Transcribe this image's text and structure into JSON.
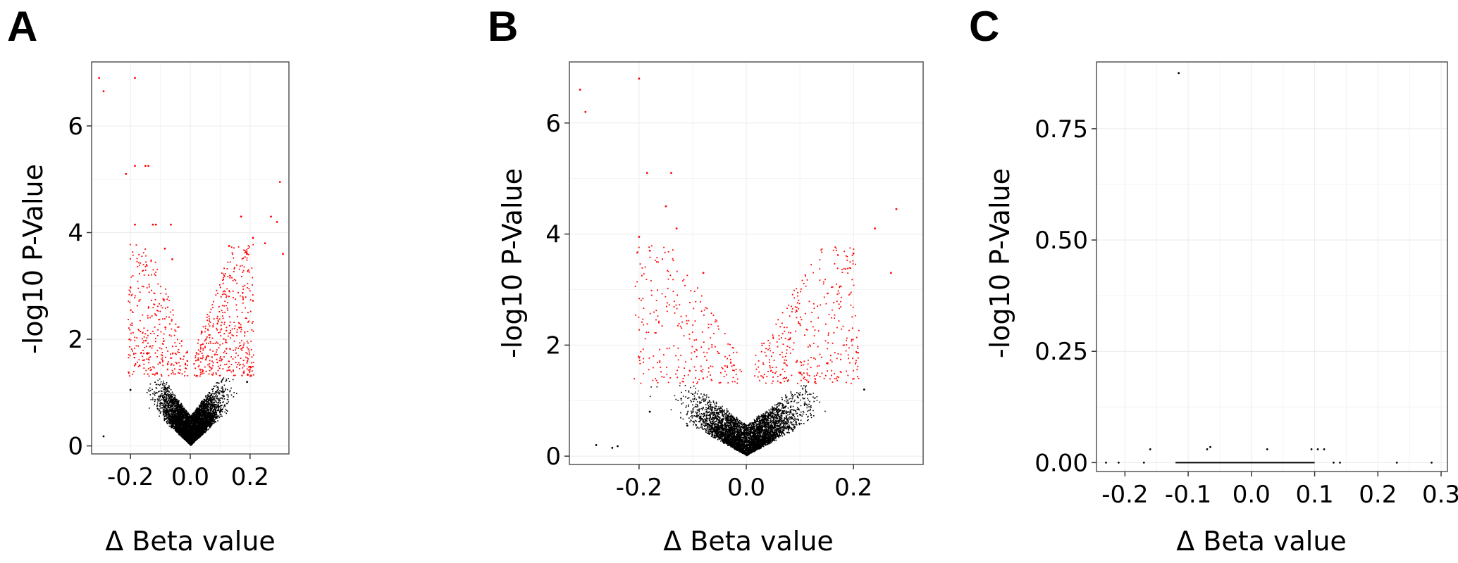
{
  "colors": {
    "significant": "#ff0000",
    "non_significant": "#000000",
    "grid": "#ebebeb",
    "frame": "#555555"
  },
  "chart_data": [
    {
      "type": "scatter",
      "panel_label": "A",
      "xlabel": "Δ Beta value",
      "ylabel": "-log10 P-Value",
      "xlim": [
        -0.33,
        0.33
      ],
      "ylim": [
        -0.15,
        7.2
      ],
      "xticks": [
        -0.2,
        0.0,
        0.2
      ],
      "xtick_labels": [
        "-0.2",
        "0.0",
        "0.2"
      ],
      "yticks": [
        0,
        2,
        4,
        6
      ],
      "ytick_labels": [
        "0",
        "2",
        "4",
        "6"
      ],
      "grid": true,
      "significance_threshold": 1.3,
      "series": [
        {
          "points": [
            [
              -0.305,
              6.9
            ],
            [
              -0.29,
              6.65
            ],
            [
              -0.185,
              6.9
            ],
            [
              -0.215,
              5.1
            ],
            [
              -0.185,
              5.25
            ],
            [
              -0.15,
              5.25
            ],
            [
              -0.14,
              5.25
            ],
            [
              -0.185,
              4.15
            ],
            [
              -0.125,
              4.15
            ],
            [
              -0.115,
              4.15
            ],
            [
              -0.065,
              4.15
            ],
            [
              0.17,
              4.3
            ],
            [
              0.27,
              4.3
            ],
            [
              0.29,
              4.2
            ],
            [
              0.3,
              4.95
            ],
            [
              0.31,
              3.6
            ],
            [
              0.21,
              3.9
            ],
            [
              0.19,
              3.6
            ],
            [
              -0.29,
              0.18
            ],
            [
              -0.2,
              1.05
            ],
            [
              0.19,
              1.2
            ],
            [
              -0.085,
              3.7
            ],
            [
              -0.06,
              3.5
            ],
            [
              0.13,
              3.75
            ],
            [
              0.25,
              3.8
            ]
          ]
        }
      ],
      "cloud": {
        "n": 6000,
        "sd_x": 0.045,
        "max_side_x": 0.22,
        "n_sig": 780,
        "seed": 11
      }
    },
    {
      "type": "scatter",
      "panel_label": "B",
      "xlabel": "Δ Beta value",
      "ylabel": "-log10 P-Value",
      "xlim": [
        -0.33,
        0.33
      ],
      "ylim": [
        -0.15,
        7.1
      ],
      "xticks": [
        -0.2,
        0.0,
        0.2
      ],
      "xtick_labels": [
        "-0.2",
        "0.0",
        "0.2"
      ],
      "yticks": [
        0,
        2,
        4,
        6
      ],
      "ytick_labels": [
        "0",
        "2",
        "4",
        "6"
      ],
      "grid": true,
      "significance_threshold": 1.3,
      "series": [
        {
          "points": [
            [
              -0.31,
              6.6
            ],
            [
              -0.3,
              6.2
            ],
            [
              -0.2,
              6.8
            ],
            [
              -0.2,
              3.95
            ],
            [
              -0.185,
              5.1
            ],
            [
              -0.14,
              5.1
            ],
            [
              -0.15,
              4.5
            ],
            [
              -0.13,
              4.1
            ],
            [
              -0.18,
              3.7
            ],
            [
              0.28,
              4.45
            ],
            [
              0.24,
              4.1
            ],
            [
              0.2,
              3.65
            ],
            [
              -0.28,
              0.2
            ],
            [
              -0.25,
              0.15
            ],
            [
              -0.24,
              0.18
            ],
            [
              -0.18,
              0.8
            ],
            [
              -0.11,
              0.55
            ],
            [
              0.22,
              1.2
            ],
            [
              0.27,
              3.3
            ],
            [
              -0.08,
              3.3
            ]
          ]
        }
      ],
      "cloud": {
        "n": 5000,
        "sd_x": 0.045,
        "max_side_x": 0.2,
        "n_sig": 620,
        "seed": 23
      }
    },
    {
      "type": "scatter",
      "panel_label": "C",
      "xlabel": "Δ Beta value",
      "ylabel": "-log10 P-Value",
      "xlim": [
        -0.245,
        0.31
      ],
      "ylim": [
        -0.02,
        0.9
      ],
      "xticks": [
        -0.2,
        -0.1,
        0.0,
        0.1,
        0.2,
        0.3
      ],
      "xtick_labels": [
        "-0.2",
        "-0.1",
        "0.0",
        "0.1",
        "0.2",
        "0.3"
      ],
      "yticks": [
        0,
        0.25,
        0.5,
        0.75
      ],
      "ytick_labels": [
        "0.00",
        "0.25",
        "0.50",
        "0.75"
      ],
      "grid": true,
      "series": [
        {
          "points": [
            [
              -0.115,
              0.875
            ],
            [
              -0.16,
              0.03
            ],
            [
              -0.07,
              0.03
            ],
            [
              -0.065,
              0.035
            ],
            [
              0.025,
              0.03
            ],
            [
              0.095,
              0.03
            ],
            [
              0.105,
              0.03
            ],
            [
              0.115,
              0.03
            ],
            [
              -0.23,
              0.0
            ],
            [
              -0.21,
              0.0
            ],
            [
              0.23,
              0.0
            ],
            [
              0.285,
              0.0
            ],
            [
              -0.17,
              0.0
            ],
            [
              0.13,
              0.0
            ],
            [
              0.14,
              0.0
            ]
          ]
        }
      ],
      "baseline": {
        "x_from": -0.12,
        "x_to": 0.1,
        "y": 0.0
      }
    }
  ]
}
